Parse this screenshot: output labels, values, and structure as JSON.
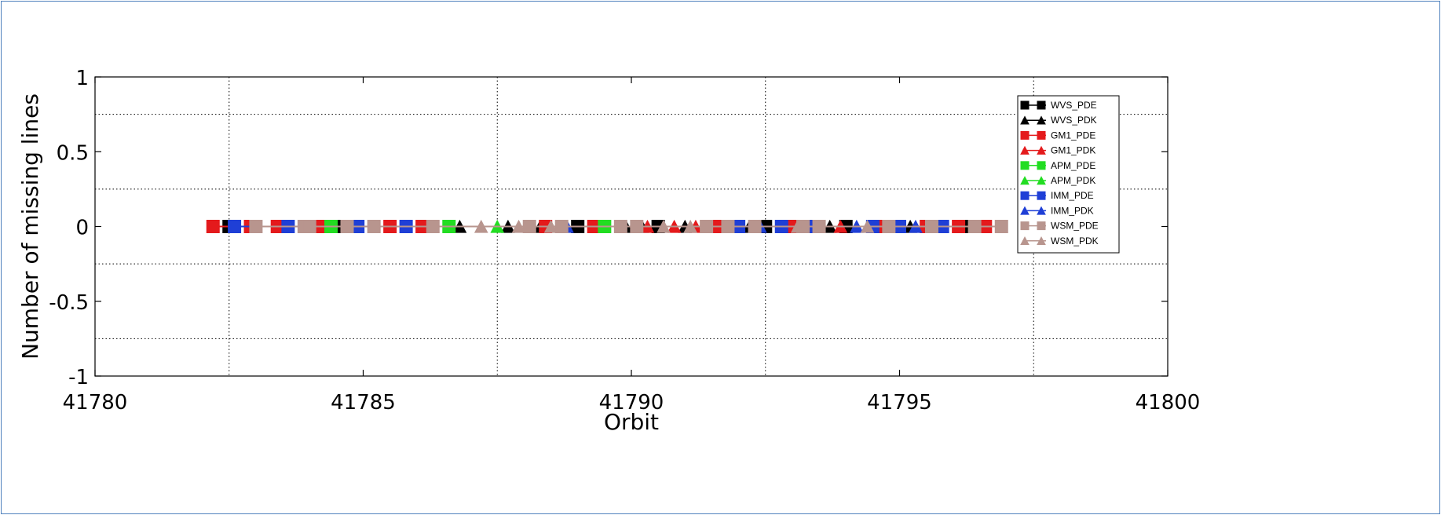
{
  "chart_data": {
    "type": "line",
    "xlabel": "Orbit",
    "ylabel": "Number of missing lines",
    "xlim": [
      41780,
      41800
    ],
    "ylim": [
      -1,
      1
    ],
    "xticks": [
      {
        "value": 41780,
        "label": "41780"
      },
      {
        "value": 41785,
        "label": "41785"
      },
      {
        "value": 41790,
        "label": "41790"
      },
      {
        "value": 41795,
        "label": "41795"
      },
      {
        "value": 41800,
        "label": "41800"
      }
    ],
    "yticks": [
      {
        "value": 1,
        "label": "1"
      },
      {
        "value": 0.5,
        "label": "0.5"
      },
      {
        "value": 0,
        "label": "0"
      },
      {
        "value": -0.5,
        "label": "-0.5"
      },
      {
        "value": -1,
        "label": "-1"
      }
    ],
    "x_grid": [
      41782.5,
      41787.5,
      41792.5,
      41797.5
    ],
    "y_grid": [
      0.75,
      0.25,
      -0.25,
      -0.75
    ],
    "grid": true,
    "legend_position": "top-right",
    "series": [
      {
        "name": "WVS_PDE",
        "color": "#000000",
        "marker": "square",
        "x": [
          41782.5,
          41784.5,
          41789.0,
          41790.5,
          41792.5,
          41794.0,
          41796.3
        ],
        "y": [
          0,
          0,
          0,
          0,
          0,
          0,
          0
        ]
      },
      {
        "name": "WVS_PDK",
        "color": "#000000",
        "marker": "triangle",
        "x": [
          41786.8,
          41787.7,
          41788.3,
          41789.9,
          41790.2,
          41791.0,
          41792.2,
          41793.7,
          41795.2
        ],
        "y": [
          0,
          0,
          0,
          0,
          0,
          0,
          0,
          0,
          0
        ]
      },
      {
        "name": "GM1_PDE",
        "color": "#e41a1c",
        "marker": "square",
        "x": [
          41782.2,
          41782.9,
          41783.4,
          41784.2,
          41785.5,
          41786.1,
          41788.4,
          41789.3,
          41791.6,
          41793.0,
          41794.6,
          41795.5,
          41796.1,
          41796.6
        ],
        "y": [
          0,
          0,
          0,
          0,
          0,
          0,
          0,
          0,
          0,
          0,
          0,
          0,
          0,
          0
        ]
      },
      {
        "name": "GM1_PDK",
        "color": "#e41a1c",
        "marker": "triangle",
        "x": [
          41790.3,
          41790.8,
          41791.2,
          41793.9
        ],
        "y": [
          0,
          0,
          0,
          0
        ]
      },
      {
        "name": "APM_PDE",
        "color": "#22dd22",
        "marker": "square",
        "x": [
          41784.4,
          41786.6,
          41789.5
        ],
        "y": [
          0,
          0,
          0
        ]
      },
      {
        "name": "APM_PDK",
        "color": "#22dd22",
        "marker": "triangle",
        "x": [
          41787.5
        ],
        "y": [
          0
        ]
      },
      {
        "name": "IMM_PDE",
        "color": "#1f3fd6",
        "marker": "square",
        "x": [
          41782.6,
          41783.6,
          41784.9,
          41785.8,
          41792.0,
          41792.8,
          41793.3,
          41794.5,
          41795.0,
          41795.8
        ],
        "y": [
          0,
          0,
          0,
          0,
          0,
          0,
          0,
          0,
          0,
          0
        ]
      },
      {
        "name": "IMM_PDK",
        "color": "#1f3fd6",
        "marker": "triangle",
        "x": [
          41788.8,
          41792.4,
          41794.2,
          41795.3
        ],
        "y": [
          0,
          0,
          0,
          0
        ]
      },
      {
        "name": "WSM_PDE",
        "color": "#b8958e",
        "marker": "square",
        "x": [
          41783.0,
          41783.9,
          41784.0,
          41784.7,
          41785.2,
          41786.3,
          41788.1,
          41788.7,
          41789.8,
          41790.1,
          41791.4,
          41791.8,
          41792.3,
          41793.2,
          41793.5,
          41794.8,
          41795.6,
          41796.4,
          41796.9
        ],
        "y": [
          0,
          0,
          0,
          0,
          0,
          0,
          0,
          0,
          0,
          0,
          0,
          0,
          0,
          0,
          0,
          0,
          0,
          0,
          0
        ]
      },
      {
        "name": "WSM_PDK",
        "color": "#b8958e",
        "marker": "triangle",
        "x": [
          41787.2,
          41787.9,
          41788.5,
          41790.6,
          41791.1,
          41793.1,
          41794.4
        ],
        "y": [
          0,
          0,
          0,
          0,
          0,
          0,
          0
        ]
      }
    ]
  }
}
